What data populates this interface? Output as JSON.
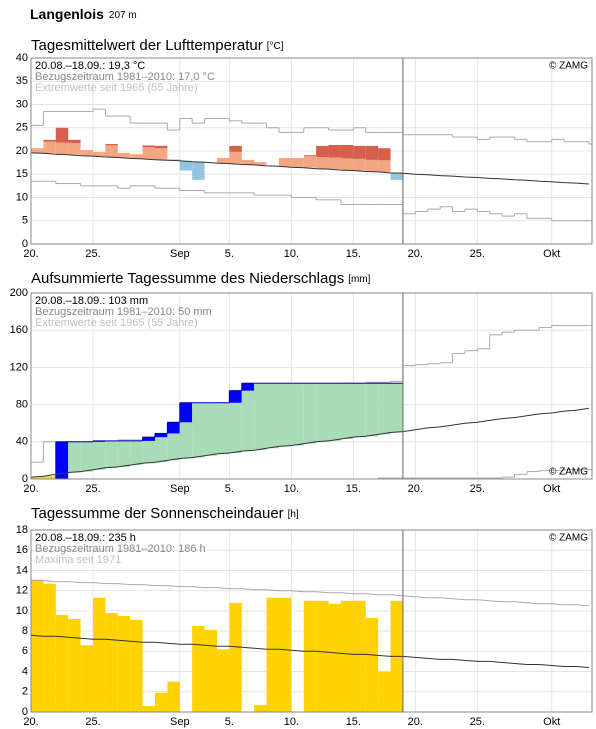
{
  "header": {
    "station": "Langenlois",
    "elevation": "207 m"
  },
  "chart_data": [
    {
      "type": "anomaly",
      "title": "Tagesmittelwert der Lufttemperatur",
      "unit": "[°C]",
      "annotations": [
        "20.08.–18.09.: 19,3 °C",
        "Bezugszeitraum 1981–2010: 17,0 °C",
        "Extremwerte seit 1965 (55 Jahre)"
      ],
      "source": "© ZAMG",
      "xlim": [
        0,
        45.25
      ],
      "xticks": [
        {
          "value": 0,
          "label": "20."
        },
        {
          "value": 5,
          "label": "25."
        },
        {
          "value": 12,
          "label": "Sep"
        },
        {
          "value": 16,
          "label": "5."
        },
        {
          "value": 21,
          "label": "10."
        },
        {
          "value": 26,
          "label": "15."
        },
        {
          "value": 31,
          "label": "20."
        },
        {
          "value": 36,
          "label": "25."
        },
        {
          "value": 42,
          "label": "Okt"
        }
      ],
      "ylim": [
        0,
        40
      ],
      "yticks": [
        0,
        5,
        10,
        15,
        20,
        25,
        30,
        35,
        40
      ],
      "grid": true,
      "x": [
        0,
        1,
        2,
        3,
        4,
        5,
        6,
        7,
        8,
        9,
        10,
        11,
        12,
        13,
        14,
        15,
        16,
        17,
        18,
        19,
        20,
        21,
        22,
        23,
        24,
        25,
        26,
        27,
        28,
        29,
        30,
        31,
        32,
        33,
        34,
        35,
        36,
        37,
        38,
        39,
        40,
        41,
        42,
        43,
        44,
        45
      ],
      "values": [
        20.6,
        22.4,
        25.0,
        22.4,
        20.2,
        19.8,
        21.5,
        19.6,
        19.3,
        21.2,
        21.1,
        18.2,
        15.8,
        13.8,
        17.6,
        18.5,
        21.1,
        18.1,
        17.6,
        16.8,
        18.5,
        18.5,
        19.1,
        21.1,
        21.3,
        21.3,
        21.1,
        21.1,
        20.6,
        13.8,
        null,
        null,
        null,
        null,
        null,
        null,
        null,
        null,
        null,
        null,
        null,
        null,
        null,
        null,
        null,
        null
      ],
      "normal": [
        19.6,
        19.5,
        19.3,
        19.2,
        19.0,
        18.9,
        18.7,
        18.6,
        18.4,
        18.3,
        18.1,
        18.0,
        17.9,
        17.7,
        17.6,
        17.4,
        17.3,
        17.1,
        17.0,
        16.8,
        16.7,
        16.5,
        16.4,
        16.2,
        16.1,
        15.9,
        15.8,
        15.6,
        15.5,
        15.3,
        15.2,
        15.0,
        14.9,
        14.7,
        14.6,
        14.4,
        14.3,
        14.1,
        14.0,
        13.8,
        13.7,
        13.5,
        13.4,
        13.2,
        13.1,
        12.9
      ],
      "extreme_max": [
        25.5,
        28.5,
        28.5,
        28.5,
        28.5,
        29,
        27.5,
        27.5,
        26,
        26,
        26,
        24.5,
        27,
        26,
        27,
        27,
        26.5,
        26,
        26,
        25,
        24,
        24,
        25,
        25,
        24.5,
        24.5,
        25,
        24,
        24,
        24,
        23.5,
        23.5,
        23.5,
        23.5,
        23,
        23,
        22.5,
        23,
        23,
        22.5,
        22,
        22,
        22.5,
        22,
        22,
        21.5
      ],
      "extreme_min": [
        13.5,
        13.5,
        13,
        13,
        12.5,
        12.5,
        12.5,
        12,
        12.5,
        12.5,
        12,
        12,
        11.5,
        11.5,
        11,
        11,
        11,
        11,
        10.5,
        10.5,
        10.5,
        10,
        10,
        9.5,
        9.5,
        8.5,
        8.5,
        8.5,
        8.5,
        8.5,
        6.5,
        7,
        7.5,
        8,
        7,
        7.5,
        7,
        6.5,
        6,
        6.5,
        5.5,
        5.5,
        5,
        5,
        5,
        5
      ],
      "colors": {
        "above": "#f4a582",
        "far_above": "#d6604d",
        "below": "#92c5de",
        "normal": "#333333",
        "extreme": "#aaaaaa"
      }
    },
    {
      "type": "cumulative",
      "title": "Aufsummierte Tagessumme des Niederschlags",
      "unit": "[mm]",
      "annotations": [
        "20.08.–18.09.: 103 mm",
        "Bezugszeitraum 1981–2010: 50 mm",
        "Extremwerte seit 1965 (55 Jahre)"
      ],
      "source": "© ZAMG",
      "xlim": [
        0,
        45.25
      ],
      "xticks": [
        {
          "value": 0,
          "label": "20."
        },
        {
          "value": 5,
          "label": "25."
        },
        {
          "value": 12,
          "label": "Sep"
        },
        {
          "value": 16,
          "label": "5."
        },
        {
          "value": 21,
          "label": "10."
        },
        {
          "value": 26,
          "label": "15."
        },
        {
          "value": 31,
          "label": "20."
        },
        {
          "value": 36,
          "label": "25."
        },
        {
          "value": 42,
          "label": "Okt"
        }
      ],
      "ylim": [
        0,
        200
      ],
      "yticks": [
        0,
        40,
        80,
        120,
        160,
        200
      ],
      "grid": true,
      "x": [
        0,
        1,
        2,
        3,
        4,
        5,
        6,
        7,
        8,
        9,
        10,
        11,
        12,
        13,
        14,
        15,
        16,
        17,
        18,
        19,
        20,
        21,
        22,
        23,
        24,
        25,
        26,
        27,
        28,
        29,
        30,
        31,
        32,
        33,
        34,
        35,
        36,
        37,
        38,
        39,
        40,
        41,
        42,
        43,
        44,
        45
      ],
      "values": [
        0,
        0,
        40,
        40,
        40,
        41,
        41,
        41,
        41,
        45,
        49,
        61,
        82,
        82,
        82,
        82,
        95,
        103,
        103,
        103,
        103,
        103,
        103,
        103,
        103,
        103,
        103,
        103,
        103,
        103,
        null,
        null,
        null,
        null,
        null,
        null,
        null,
        null,
        null,
        null,
        null,
        null,
        null,
        null,
        null,
        null
      ],
      "normal": [
        2,
        3,
        5,
        7,
        8,
        10,
        12,
        13,
        15,
        17,
        18,
        20,
        22,
        23,
        25,
        27,
        28,
        30,
        31,
        33,
        35,
        36,
        38,
        40,
        41,
        43,
        45,
        46,
        48,
        50,
        51,
        53,
        55,
        56,
        58,
        60,
        61,
        63,
        65,
        66,
        68,
        70,
        71,
        73,
        74,
        76
      ],
      "extreme_max": [
        18,
        40,
        40,
        40,
        40,
        40,
        40,
        42,
        42,
        42,
        44,
        46,
        50,
        52,
        60,
        82,
        85,
        88,
        92,
        95,
        97,
        99,
        100,
        100,
        102,
        103,
        103,
        104,
        104,
        105,
        122,
        123,
        124,
        125,
        135,
        138,
        140,
        155,
        158,
        160,
        160,
        163,
        165,
        165,
        165,
        165
      ],
      "extreme_min": [
        0,
        0,
        0,
        0,
        0,
        0,
        0,
        0,
        0,
        0,
        0,
        0,
        0,
        0,
        0,
        0,
        0,
        0,
        0,
        0,
        0,
        0,
        0,
        0,
        0,
        0,
        0,
        0,
        1,
        1,
        1,
        1,
        1,
        1,
        1,
        1,
        1,
        1,
        2,
        5,
        8,
        9,
        9,
        10,
        10,
        10
      ],
      "colors": {
        "above": "#a8dcb6",
        "below": "#f2d34a",
        "increment": "#0000ff",
        "observed": "#0000aa",
        "normal": "#333333",
        "extreme": "#aaaaaa"
      }
    },
    {
      "type": "bar",
      "title": "Tagessumme der Sonnenscheindauer",
      "unit": "[h]",
      "annotations": [
        "20.08.–18.09.: 235 h",
        "Bezugszeitraum 1981–2010: 186 h",
        "Maxima seit 1971"
      ],
      "source": "© ZAMG",
      "xlim": [
        0,
        45.25
      ],
      "xticks": [
        {
          "value": 0,
          "label": "20."
        },
        {
          "value": 5,
          "label": "25."
        },
        {
          "value": 12,
          "label": "Sep"
        },
        {
          "value": 16,
          "label": "5."
        },
        {
          "value": 21,
          "label": "10."
        },
        {
          "value": 26,
          "label": "15."
        },
        {
          "value": 31,
          "label": "20."
        },
        {
          "value": 36,
          "label": "25."
        },
        {
          "value": 42,
          "label": "Okt"
        }
      ],
      "ylim": [
        0,
        18
      ],
      "yticks": [
        0,
        2,
        4,
        6,
        8,
        10,
        12,
        14,
        16,
        18
      ],
      "grid": true,
      "x": [
        0,
        1,
        2,
        3,
        4,
        5,
        6,
        7,
        8,
        9,
        10,
        11,
        12,
        13,
        14,
        15,
        16,
        17,
        18,
        19,
        20,
        21,
        22,
        23,
        24,
        25,
        26,
        27,
        28,
        29,
        30,
        31,
        32,
        33,
        34,
        35,
        36,
        37,
        38,
        39,
        40,
        41,
        42,
        43,
        44,
        45
      ],
      "values": [
        13.1,
        12.7,
        9.6,
        9.2,
        6.6,
        11.3,
        9.8,
        9.5,
        9.1,
        0.6,
        1.9,
        3.0,
        0,
        8.5,
        8.1,
        6.2,
        10.8,
        0,
        0.7,
        11.3,
        11.3,
        0,
        11.0,
        11.0,
        10.7,
        11.0,
        11.0,
        9.3,
        4.0,
        11.0,
        null,
        null,
        null,
        null,
        null,
        null,
        null,
        null,
        null,
        null,
        null,
        null,
        null,
        null,
        null,
        null
      ],
      "normal": [
        7.6,
        7.5,
        7.5,
        7.4,
        7.3,
        7.2,
        7.2,
        7.1,
        7.0,
        6.9,
        6.9,
        6.8,
        6.7,
        6.7,
        6.6,
        6.5,
        6.5,
        6.4,
        6.3,
        6.2,
        6.2,
        6.1,
        6.0,
        6.0,
        5.9,
        5.8,
        5.7,
        5.7,
        5.6,
        5.5,
        5.5,
        5.4,
        5.3,
        5.2,
        5.2,
        5.1,
        5.0,
        5.0,
        4.9,
        4.8,
        4.7,
        4.7,
        4.6,
        4.5,
        4.5,
        4.4
      ],
      "maxima": [
        13.0,
        13.0,
        12.9,
        12.9,
        12.8,
        12.8,
        12.7,
        12.7,
        12.6,
        12.6,
        12.5,
        12.5,
        12.4,
        12.4,
        12.3,
        12.3,
        12.2,
        12.2,
        12.1,
        12.1,
        12.0,
        12.0,
        11.9,
        11.9,
        11.8,
        11.8,
        11.7,
        11.7,
        11.6,
        11.6,
        11.5,
        11.4,
        11.3,
        11.3,
        11.2,
        11.1,
        11.1,
        11.0,
        10.9,
        10.9,
        10.8,
        10.7,
        10.7,
        10.6,
        10.6,
        10.5
      ],
      "colors": {
        "bar": "#ffd200",
        "normal": "#333333",
        "extreme": "#aaaaaa"
      }
    }
  ]
}
